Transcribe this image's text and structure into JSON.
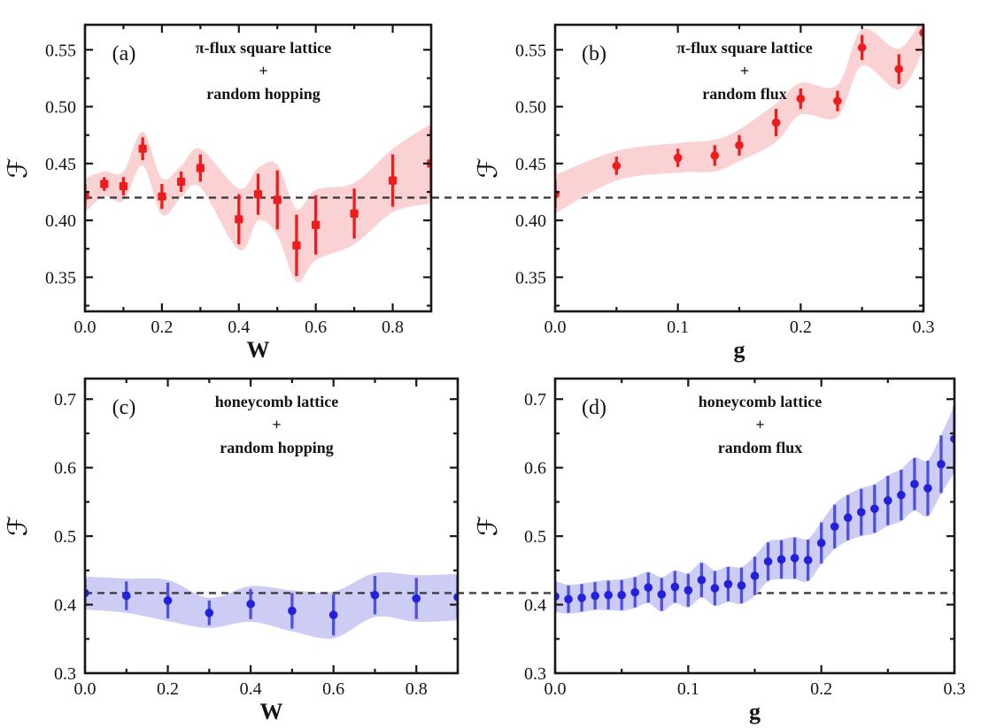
{
  "figure": {
    "background": "#ffffff",
    "baseline_color": "#3c3c3c",
    "spine_color": "#181818"
  },
  "chart_data": [
    {
      "panel": "(a)",
      "type": "scatter",
      "title_lines": [
        "π-flux square lattice",
        "+",
        "random hopping"
      ],
      "xlabel": "W",
      "ylabel": "ℱ",
      "xlim": [
        0,
        0.9
      ],
      "ylim": [
        0.32,
        0.572
      ],
      "xticks": {
        "values": [
          0,
          0.2,
          0.4,
          0.6,
          0.8
        ],
        "labels": [
          "0.0",
          "0.2",
          "0.4",
          "0.6",
          "0.8"
        ],
        "minor": [
          0.1,
          0.3,
          0.5,
          0.7,
          0.9
        ]
      },
      "yticks": {
        "values": [
          0.35,
          0.4,
          0.45,
          0.5,
          0.55
        ],
        "labels": [
          "0.35",
          "0.40",
          "0.45",
          "0.50",
          "0.55"
        ],
        "minor": [
          0.325,
          0.375,
          0.425,
          0.475,
          0.525
        ]
      },
      "baseline_y": 0.42,
      "marker": "square",
      "band_pad": 0.005,
      "colors": {
        "marker": "#ee1c1c",
        "errorbar": "#ee1c1c",
        "band": "#fad2d4"
      },
      "x": [
        0.0,
        0.05,
        0.1,
        0.15,
        0.2,
        0.25,
        0.3,
        0.4,
        0.45,
        0.5,
        0.55,
        0.6,
        0.7,
        0.8,
        0.9
      ],
      "y": [
        0.422,
        0.432,
        0.43,
        0.463,
        0.421,
        0.434,
        0.446,
        0.401,
        0.423,
        0.418,
        0.378,
        0.396,
        0.406,
        0.435,
        0.45
      ],
      "yerr": [
        0.01,
        0.006,
        0.008,
        0.01,
        0.011,
        0.009,
        0.012,
        0.022,
        0.018,
        0.026,
        0.027,
        0.026,
        0.022,
        0.023,
        0.03
      ]
    },
    {
      "panel": "(b)",
      "type": "scatter",
      "title_lines": [
        "π-flux square lattice",
        "+",
        "random flux"
      ],
      "xlabel": "g",
      "ylabel": "ℱ",
      "xlim": [
        0,
        0.3
      ],
      "ylim": [
        0.32,
        0.572
      ],
      "xticks": {
        "values": [
          0,
          0.1,
          0.2,
          0.3
        ],
        "labels": [
          "0.0",
          "0.1",
          "0.2",
          "0.3"
        ],
        "minor": [
          0.05,
          0.15,
          0.25
        ]
      },
      "yticks": {
        "values": [
          0.35,
          0.4,
          0.45,
          0.5,
          0.55
        ],
        "labels": [
          "0.35",
          "0.40",
          "0.45",
          "0.50",
          "0.55"
        ],
        "minor": [
          0.325,
          0.375,
          0.425,
          0.475,
          0.525
        ]
      },
      "baseline_y": 0.42,
      "marker": "circle",
      "band_pad": 0.005,
      "colors": {
        "marker": "#ee1c1c",
        "errorbar": "#ee1c1c",
        "band": "#fad2d4"
      },
      "x": [
        0.0,
        0.05,
        0.1,
        0.13,
        0.15,
        0.18,
        0.2,
        0.23,
        0.25,
        0.28,
        0.3
      ],
      "y": [
        0.423,
        0.448,
        0.455,
        0.457,
        0.466,
        0.486,
        0.507,
        0.505,
        0.552,
        0.533,
        0.565
      ],
      "yerr": [
        0.012,
        0.008,
        0.008,
        0.009,
        0.009,
        0.012,
        0.009,
        0.009,
        0.011,
        0.013,
        0.011
      ]
    },
    {
      "panel": "(c)",
      "type": "scatter",
      "title_lines": [
        "honeycomb lattice",
        "+",
        "random hopping"
      ],
      "xlabel": "W",
      "ylabel": "ℱ",
      "xlim": [
        0,
        0.9
      ],
      "ylim": [
        0.3,
        0.73
      ],
      "xticks": {
        "values": [
          0,
          0.2,
          0.4,
          0.6,
          0.8
        ],
        "labels": [
          "0.0",
          "0.2",
          "0.4",
          "0.6",
          "0.8"
        ],
        "minor": [
          0.1,
          0.3,
          0.5,
          0.7,
          0.9
        ]
      },
      "yticks": {
        "values": [
          0.3,
          0.4,
          0.5,
          0.6,
          0.7
        ],
        "labels": [
          "0.3",
          "0.4",
          "0.5",
          "0.6",
          "0.7"
        ],
        "minor": [
          0.35,
          0.45,
          0.55,
          0.65
        ]
      },
      "baseline_y": 0.417,
      "marker": "circle",
      "band_pad": 0.004,
      "colors": {
        "marker": "#2020dd",
        "errorbar": "#5050e0",
        "band": "#ccccf4"
      },
      "x": [
        0.0,
        0.1,
        0.2,
        0.3,
        0.4,
        0.5,
        0.6,
        0.7,
        0.8,
        0.9
      ],
      "y": [
        0.417,
        0.413,
        0.406,
        0.388,
        0.401,
        0.391,
        0.385,
        0.414,
        0.409,
        0.411
      ],
      "yerr": [
        0.02,
        0.021,
        0.026,
        0.018,
        0.022,
        0.026,
        0.03,
        0.028,
        0.03,
        0.03
      ]
    },
    {
      "panel": "(d)",
      "type": "scatter",
      "title_lines": [
        "honeycomb lattice",
        "+",
        "random flux"
      ],
      "xlabel": "g",
      "ylabel": "ℱ",
      "xlim": [
        0,
        0.3
      ],
      "ylim": [
        0.3,
        0.73
      ],
      "xticks": {
        "values": [
          0,
          0.1,
          0.2,
          0.3
        ],
        "labels": [
          "0.0",
          "0.1",
          "0.2",
          "0.3"
        ],
        "minor": [
          0.05,
          0.15,
          0.25
        ]
      },
      "yticks": {
        "values": [
          0.3,
          0.4,
          0.5,
          0.6,
          0.7
        ],
        "labels": [
          "0.3",
          "0.4",
          "0.5",
          "0.6",
          "0.7"
        ],
        "minor": [
          0.35,
          0.45,
          0.55,
          0.65
        ]
      },
      "baseline_y": 0.417,
      "marker": "circle",
      "band_pad": 0.001,
      "colors": {
        "marker": "#2020dd",
        "errorbar": "#5050e0",
        "band": "#ccccf4"
      },
      "x": [
        0.0,
        0.01,
        0.02,
        0.03,
        0.04,
        0.05,
        0.06,
        0.07,
        0.08,
        0.09,
        0.1,
        0.11,
        0.12,
        0.13,
        0.14,
        0.15,
        0.16,
        0.17,
        0.18,
        0.19,
        0.2,
        0.21,
        0.22,
        0.23,
        0.24,
        0.25,
        0.26,
        0.27,
        0.28,
        0.29,
        0.3
      ],
      "y": [
        0.412,
        0.408,
        0.41,
        0.413,
        0.414,
        0.414,
        0.418,
        0.425,
        0.415,
        0.426,
        0.421,
        0.436,
        0.424,
        0.43,
        0.428,
        0.442,
        0.463,
        0.466,
        0.468,
        0.465,
        0.49,
        0.514,
        0.527,
        0.535,
        0.54,
        0.552,
        0.56,
        0.576,
        0.57,
        0.605,
        0.642
      ],
      "yerr": [
        0.022,
        0.02,
        0.02,
        0.02,
        0.021,
        0.022,
        0.022,
        0.022,
        0.024,
        0.023,
        0.024,
        0.025,
        0.025,
        0.025,
        0.026,
        0.028,
        0.028,
        0.028,
        0.03,
        0.03,
        0.03,
        0.032,
        0.033,
        0.034,
        0.035,
        0.036,
        0.037,
        0.038,
        0.04,
        0.042,
        0.048
      ]
    }
  ]
}
